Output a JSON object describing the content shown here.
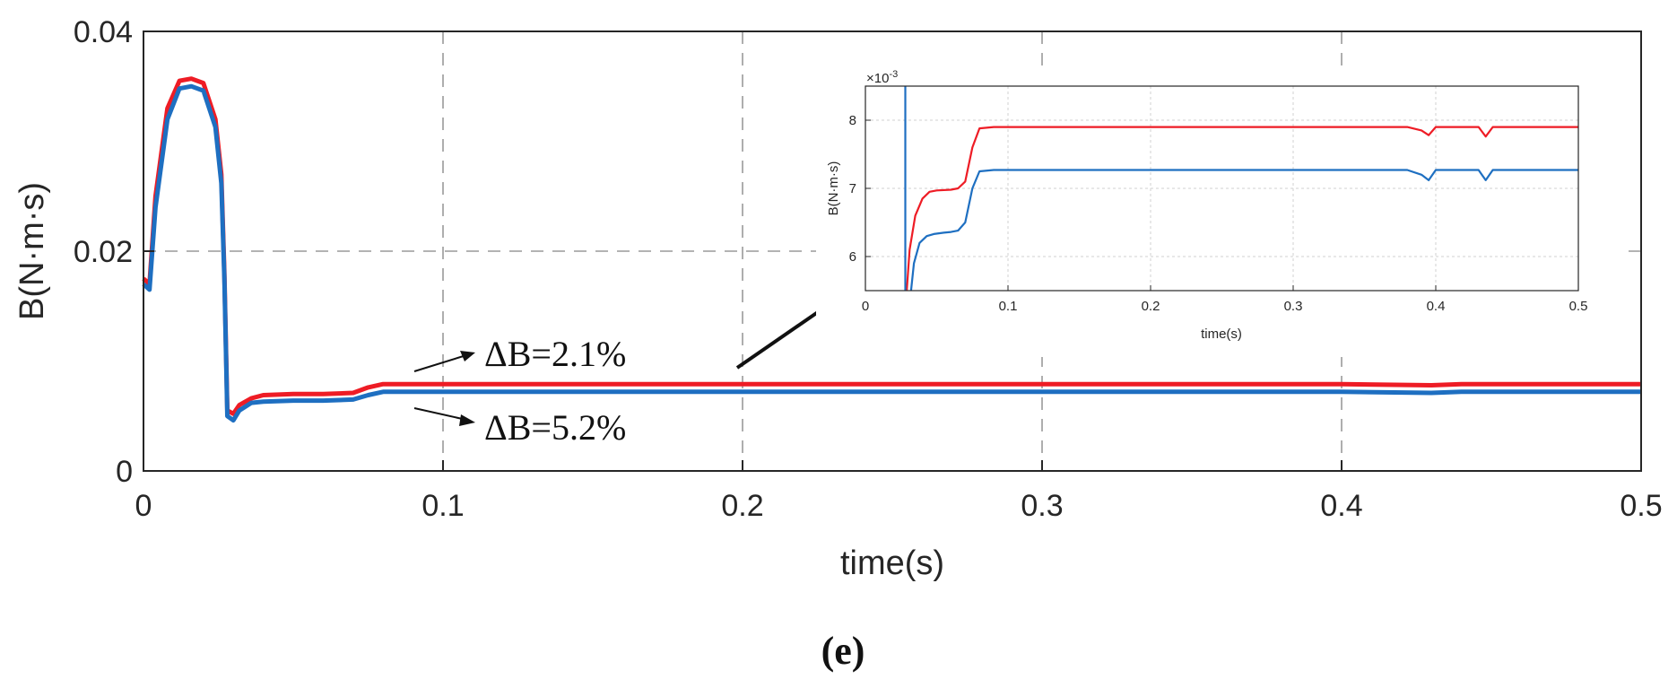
{
  "chart_data": [
    {
      "type": "line",
      "xlabel": "time(s)",
      "ylabel": "B(N·m·s)",
      "xlim": [
        0,
        0.5
      ],
      "ylim": [
        0,
        0.04
      ],
      "x_ticks": [
        "0",
        "0.1",
        "0.2",
        "0.3",
        "0.4",
        "0.5"
      ],
      "y_ticks": [
        "0",
        "0.02",
        "0.04"
      ],
      "grid": true,
      "series": [
        {
          "name": "red",
          "color": "#ee1c25",
          "x": [
            0,
            0.002,
            0.004,
            0.008,
            0.012,
            0.016,
            0.02,
            0.024,
            0.026,
            0.027,
            0.028,
            0.03,
            0.032,
            0.036,
            0.04,
            0.05,
            0.06,
            0.07,
            0.075,
            0.08,
            0.09,
            0.1,
            0.2,
            0.3,
            0.4,
            0.43,
            0.44,
            0.45,
            0.5
          ],
          "values": [
            0.0175,
            0.017,
            0.025,
            0.033,
            0.0355,
            0.0357,
            0.0353,
            0.032,
            0.027,
            0.018,
            0.0055,
            0.0052,
            0.006,
            0.0066,
            0.0069,
            0.007,
            0.007,
            0.0071,
            0.0076,
            0.0079,
            0.0079,
            0.0079,
            0.0079,
            0.0079,
            0.0079,
            0.0078,
            0.0079,
            0.0079,
            0.0079
          ]
        },
        {
          "name": "blue",
          "color": "#1e6fc1",
          "x": [
            0,
            0.002,
            0.004,
            0.008,
            0.012,
            0.016,
            0.02,
            0.024,
            0.026,
            0.027,
            0.028,
            0.03,
            0.032,
            0.036,
            0.04,
            0.05,
            0.06,
            0.07,
            0.075,
            0.08,
            0.09,
            0.1,
            0.2,
            0.3,
            0.4,
            0.43,
            0.44,
            0.45,
            0.5
          ],
          "values": [
            0.017,
            0.0165,
            0.024,
            0.032,
            0.0348,
            0.035,
            0.0346,
            0.0313,
            0.0262,
            0.0175,
            0.005,
            0.0046,
            0.0055,
            0.0062,
            0.0063,
            0.0064,
            0.0064,
            0.0065,
            0.0069,
            0.0072,
            0.0072,
            0.0072,
            0.0072,
            0.0072,
            0.0072,
            0.0071,
            0.0072,
            0.0072,
            0.0072
          ]
        }
      ],
      "annotations": [
        {
          "text": "ΔB=2.1%"
        },
        {
          "text": "ΔB=5.2%"
        }
      ]
    },
    {
      "type": "line",
      "role": "inset",
      "xlabel": "time(s)",
      "ylabel": "B(N·m·s)",
      "exponent_label": "×10",
      "exponent_power": "-3",
      "xlim": [
        0,
        0.5
      ],
      "ylim": [
        5.5,
        8.5
      ],
      "x_ticks": [
        "0",
        "0.1",
        "0.2",
        "0.3",
        "0.4",
        "0.5"
      ],
      "y_ticks": [
        "6",
        "7",
        "8"
      ],
      "grid": true,
      "series": [
        {
          "name": "red",
          "color": "#ee1c25",
          "x": [
            0.029,
            0.031,
            0.035,
            0.04,
            0.045,
            0.05,
            0.06,
            0.065,
            0.07,
            0.075,
            0.08,
            0.09,
            0.2,
            0.3,
            0.38,
            0.39,
            0.395,
            0.4,
            0.43,
            0.435,
            0.44,
            0.45,
            0.5
          ],
          "values": [
            5.5,
            6.1,
            6.6,
            6.85,
            6.95,
            6.97,
            6.98,
            7.0,
            7.1,
            7.6,
            7.88,
            7.9,
            7.9,
            7.9,
            7.9,
            7.85,
            7.78,
            7.9,
            7.9,
            7.76,
            7.9,
            7.9,
            7.9
          ]
        },
        {
          "name": "blue",
          "color": "#1e6fc1",
          "x": [
            0.032,
            0.034,
            0.038,
            0.043,
            0.048,
            0.055,
            0.06,
            0.065,
            0.07,
            0.075,
            0.08,
            0.09,
            0.2,
            0.3,
            0.38,
            0.39,
            0.395,
            0.4,
            0.43,
            0.435,
            0.44,
            0.45,
            0.5
          ],
          "values": [
            5.5,
            5.9,
            6.2,
            6.3,
            6.33,
            6.35,
            6.36,
            6.38,
            6.5,
            7.0,
            7.25,
            7.27,
            7.27,
            7.27,
            7.27,
            7.2,
            7.12,
            7.27,
            7.27,
            7.12,
            7.27,
            7.27,
            7.27
          ]
        },
        {
          "name": "blue-vertical",
          "color": "#1e6fc1",
          "x": [
            0.028,
            0.028
          ],
          "values": [
            5.5,
            8.5
          ]
        }
      ]
    }
  ],
  "caption": "(e)"
}
